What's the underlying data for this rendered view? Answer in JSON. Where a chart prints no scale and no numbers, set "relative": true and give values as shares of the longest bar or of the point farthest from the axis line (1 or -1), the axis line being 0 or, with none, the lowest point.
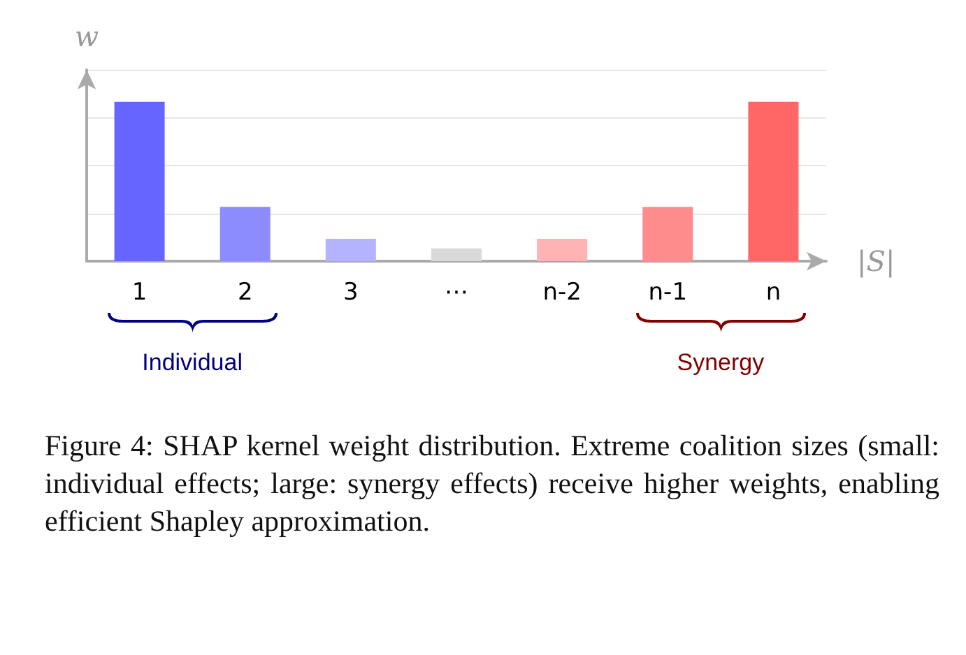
{
  "chart_data": {
    "type": "bar",
    "relative": true,
    "xlabel": "|S|",
    "ylabel": "w",
    "categories": [
      "1",
      "2",
      "3",
      "⋯",
      "n-2",
      "n-1",
      "n"
    ],
    "values": [
      1,
      0.34,
      0.14,
      0.08,
      0.14,
      0.34,
      1
    ],
    "colors": [
      "#6666ff",
      "#8c8cff",
      "#b3b3ff",
      "#d9d9d9",
      "#ffb3b3",
      "#ff8c8c",
      "#ff6666"
    ],
    "grid": "y",
    "annotations": [
      "Individual",
      "Synergy",
      "Figure 4: SHAP kernel weight distribution. Extreme coalition sizes (small: individual effects; large: synergy effects) receive higher weights, enabling efficient Shapley approximation."
    ]
  }
}
